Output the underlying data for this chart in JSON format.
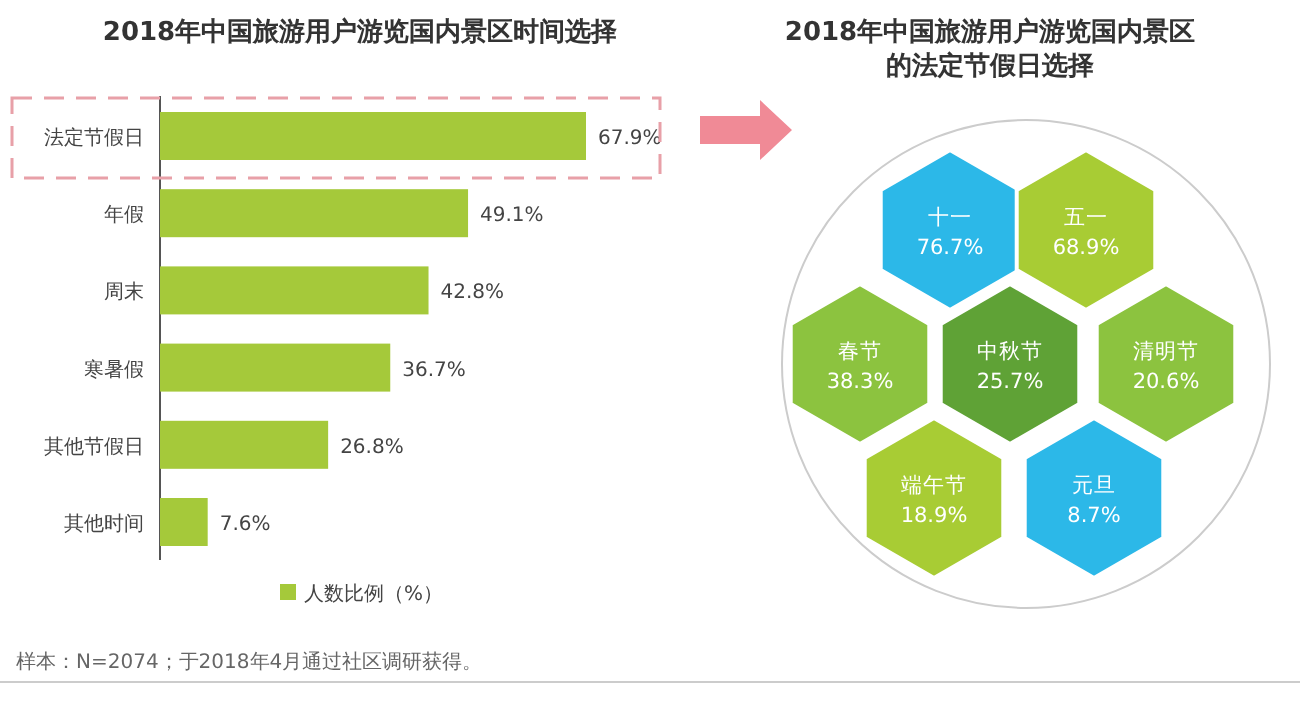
{
  "chart_data": [
    {
      "type": "bar",
      "orientation": "horizontal",
      "title": "2018年中国旅游用户游览国内景区时间选择",
      "categories": [
        "法定节假日",
        "年假",
        "周末",
        "寒暑假",
        "其他节假日",
        "其他时间"
      ],
      "series": [
        {
          "name": "人数比例（%）",
          "color": "#a5c93a",
          "values": [
            67.9,
            49.1,
            42.8,
            36.7,
            26.8,
            7.6
          ],
          "value_labels": [
            "67.9%",
            "49.1%",
            "42.8%",
            "36.7%",
            "26.8%",
            "7.6%"
          ]
        }
      ],
      "legend": "bottom",
      "annotations": [
        "样本：N=2074；于2018年4月通过社区调研获得。"
      ]
    },
    {
      "type": "other",
      "title": "2018年中国旅游用户游览国内景区的法定节假日选择",
      "categories": [
        "十一",
        "五一",
        "春节",
        "中秋节",
        "清明节",
        "端午节",
        "元旦"
      ],
      "values": [
        76.7,
        68.9,
        38.3,
        25.7,
        20.6,
        18.9,
        8.7
      ],
      "value_labels": [
        "76.7%",
        "68.9%",
        "38.3%",
        "25.7%",
        "20.6%",
        "18.9%",
        "8.7%"
      ],
      "colors": [
        "#2cb8e8",
        "#a8cc34",
        "#8cc33f",
        "#5fa236",
        "#8cc33f",
        "#a8cc34",
        "#2cb8e8"
      ]
    }
  ]
}
